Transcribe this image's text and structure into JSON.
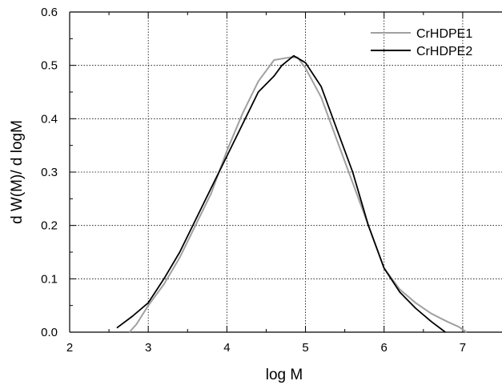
{
  "chart_data": {
    "type": "line",
    "title": "",
    "xlabel": "log M",
    "ylabel": "d W(M)/ d logM",
    "xlim": [
      2,
      7.5
    ],
    "ylim": [
      0,
      0.6
    ],
    "x_ticks": [
      2,
      3,
      4,
      5,
      6,
      7
    ],
    "y_ticks": [
      0.0,
      0.1,
      0.2,
      0.3,
      0.4,
      0.5,
      0.6
    ],
    "x_tick_labels": [
      "2",
      "3",
      "4",
      "5",
      "6",
      "7"
    ],
    "y_tick_labels": [
      "0.0",
      "0.1",
      "0.2",
      "0.3",
      "0.4",
      "0.5",
      "0.6"
    ],
    "grid": {
      "x": [
        3,
        4,
        5,
        6,
        7
      ],
      "y": [
        0.1,
        0.2,
        0.3,
        0.4,
        0.5
      ],
      "style": "dotted"
    },
    "legend_position": "top-right",
    "series": [
      {
        "name": "CrHDPE1",
        "color": "#a0a0a0",
        "points": [
          [
            2.76,
            0.0
          ],
          [
            2.85,
            0.015
          ],
          [
            3.0,
            0.05
          ],
          [
            3.2,
            0.09
          ],
          [
            3.4,
            0.14
          ],
          [
            3.6,
            0.2
          ],
          [
            3.8,
            0.26
          ],
          [
            4.0,
            0.34
          ],
          [
            4.2,
            0.41
          ],
          [
            4.4,
            0.47
          ],
          [
            4.6,
            0.51
          ],
          [
            4.8,
            0.515
          ],
          [
            4.9,
            0.515
          ],
          [
            5.0,
            0.495
          ],
          [
            5.2,
            0.44
          ],
          [
            5.4,
            0.36
          ],
          [
            5.6,
            0.28
          ],
          [
            5.8,
            0.2
          ],
          [
            6.0,
            0.12
          ],
          [
            6.2,
            0.08
          ],
          [
            6.4,
            0.055
          ],
          [
            6.6,
            0.035
          ],
          [
            6.8,
            0.02
          ],
          [
            6.95,
            0.01
          ],
          [
            7.05,
            0.0
          ]
        ]
      },
      {
        "name": "CrHDPE2",
        "color": "#000000",
        "points": [
          [
            2.6,
            0.008
          ],
          [
            2.8,
            0.03
          ],
          [
            3.0,
            0.055
          ],
          [
            3.2,
            0.1
          ],
          [
            3.4,
            0.15
          ],
          [
            3.6,
            0.21
          ],
          [
            3.8,
            0.27
          ],
          [
            4.0,
            0.33
          ],
          [
            4.2,
            0.39
          ],
          [
            4.4,
            0.45
          ],
          [
            4.6,
            0.48
          ],
          [
            4.7,
            0.5
          ],
          [
            4.85,
            0.518
          ],
          [
            5.0,
            0.505
          ],
          [
            5.2,
            0.46
          ],
          [
            5.4,
            0.38
          ],
          [
            5.6,
            0.3
          ],
          [
            5.8,
            0.2
          ],
          [
            6.0,
            0.12
          ],
          [
            6.2,
            0.075
          ],
          [
            6.4,
            0.045
          ],
          [
            6.6,
            0.02
          ],
          [
            6.78,
            0.0
          ]
        ]
      }
    ]
  }
}
